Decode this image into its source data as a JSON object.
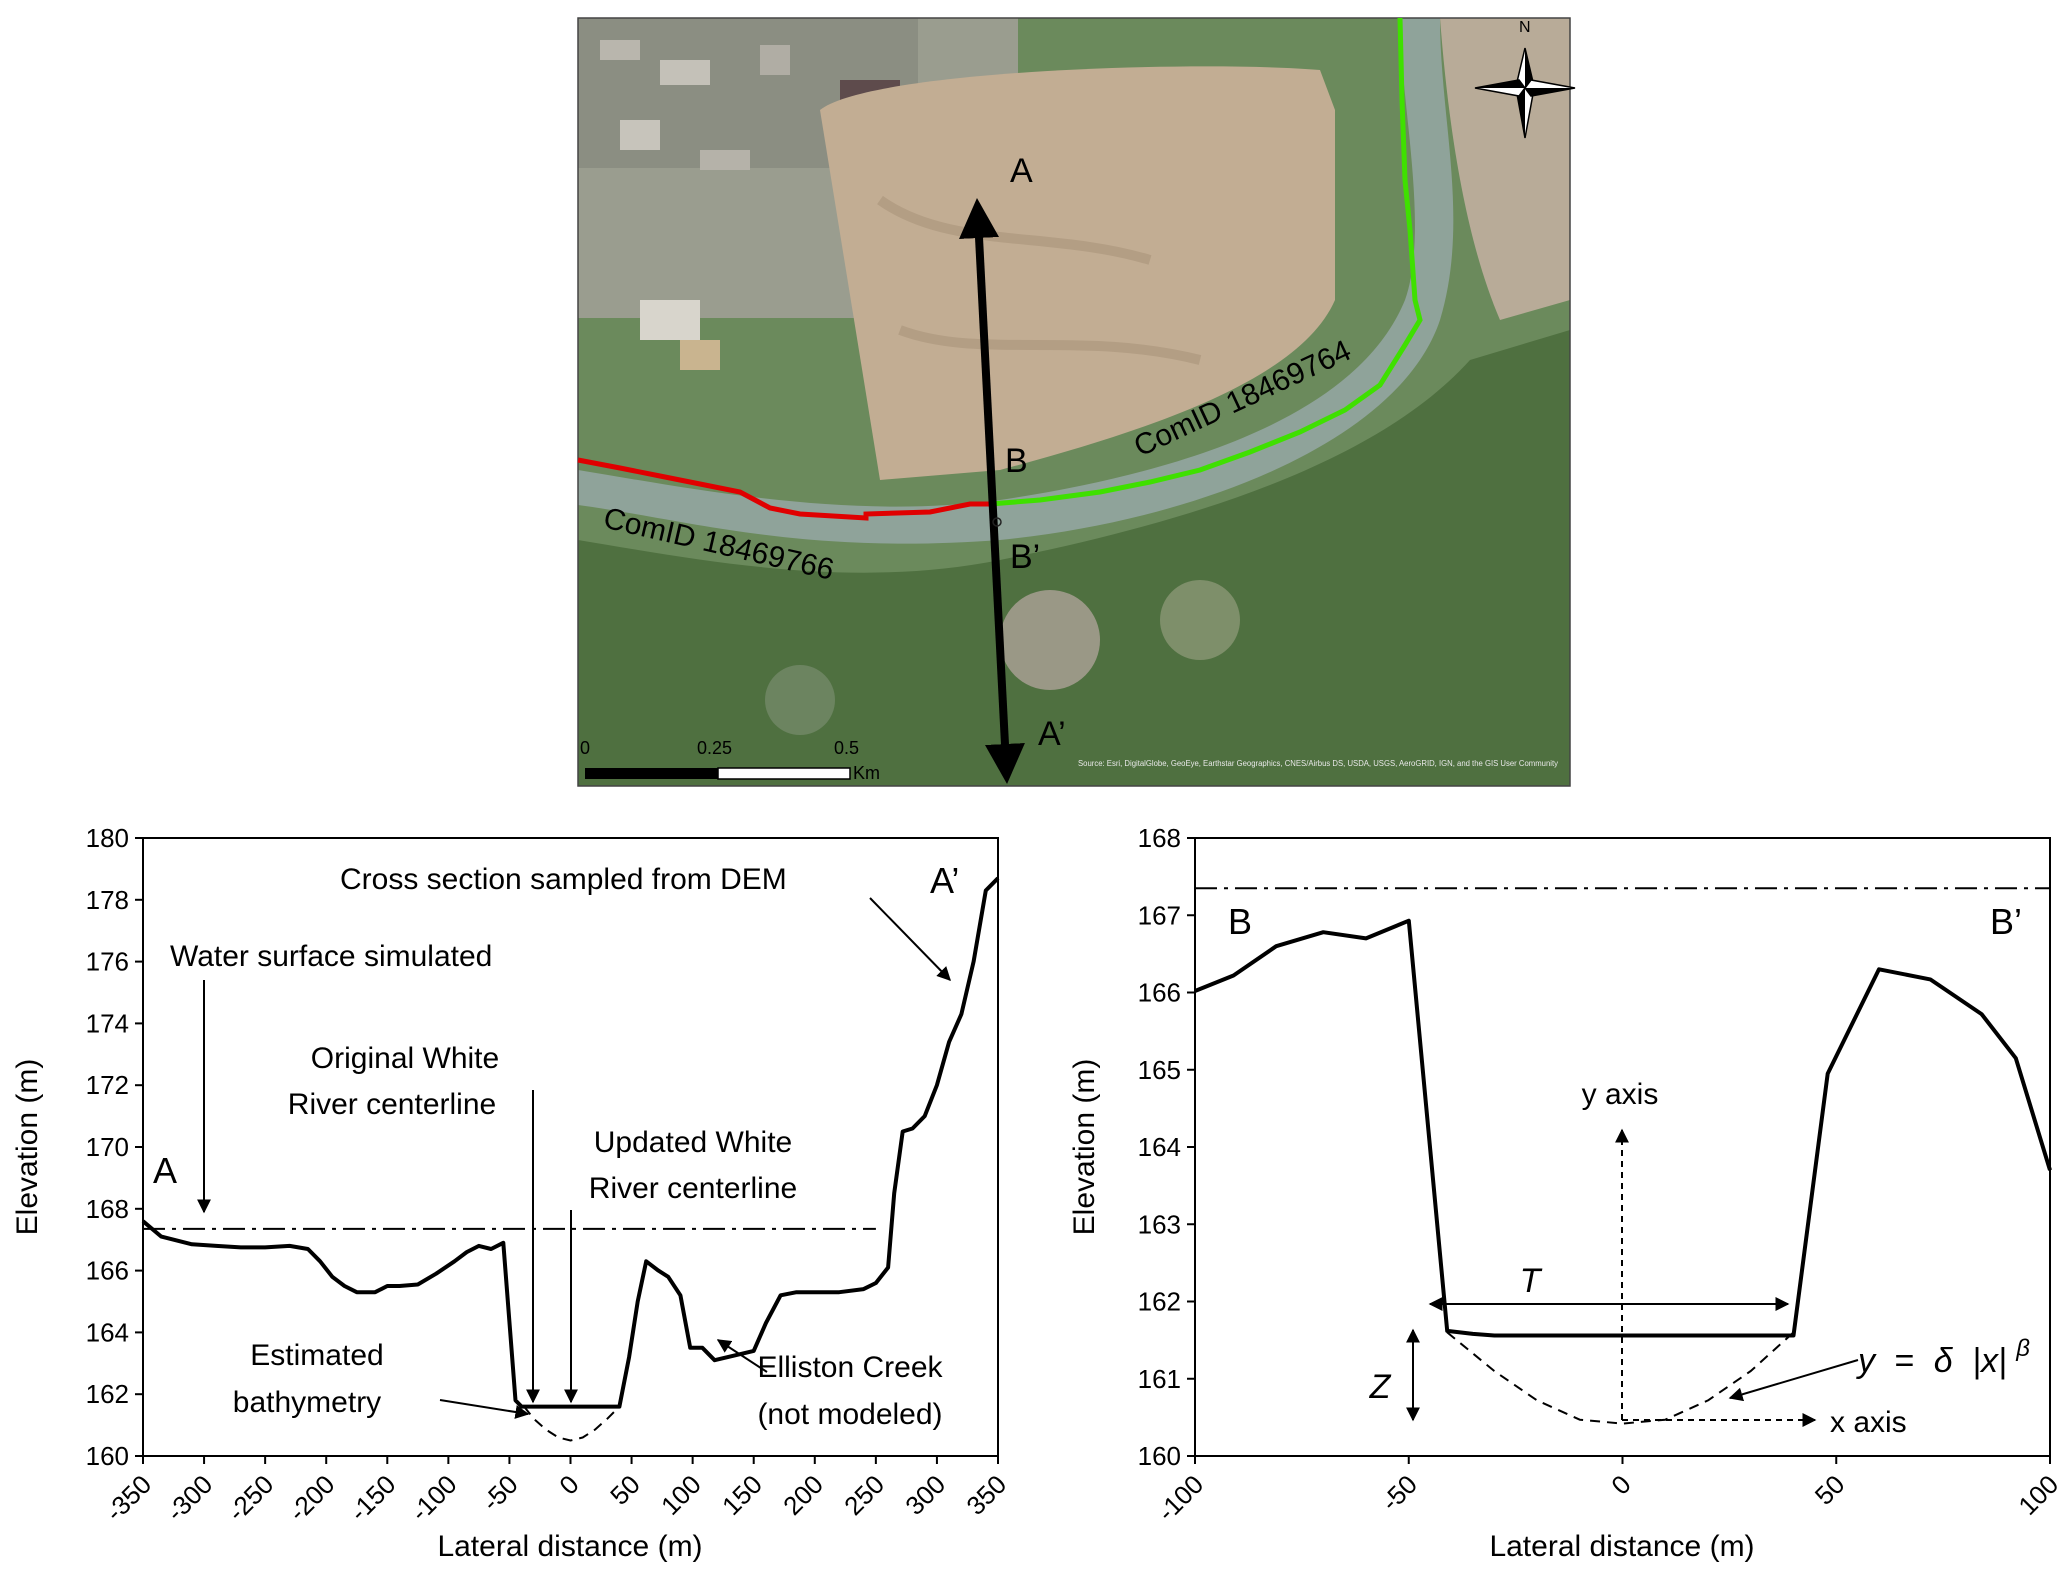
{
  "map": {
    "north_label": "N",
    "point_a": "A",
    "point_a_prime": "A’",
    "point_b": "B",
    "point_b_prime": "B’",
    "reach_downstream": "ComID 18469766",
    "reach_upstream": "ComID 18469764",
    "scale_labels": [
      "0",
      "0.25",
      "0.5"
    ],
    "scale_unit": "Km",
    "attribution": "Source: Esri, DigitalGlobe, GeoEye, Earthstar Geographics, CNES/Airbus DS, USDA, USGS, AeroGRID, IGN, and the GIS User Community",
    "colors": {
      "reach_downstream": "#e00000",
      "reach_upstream": "#3fe000",
      "transect": "#000000"
    }
  },
  "chart_data": [
    {
      "type": "line",
      "id": "A-A'",
      "xlabel": "Lateral distance (m)",
      "ylabel": "Elevation (m)",
      "xlim": [
        -350,
        350
      ],
      "ylim": [
        160,
        180
      ],
      "xticks": [
        -350,
        -300,
        -250,
        -200,
        -150,
        -100,
        -50,
        0,
        50,
        100,
        150,
        200,
        250,
        300,
        350
      ],
      "xtick_labels": [
        "-350",
        "-300",
        "-250",
        "-200",
        "-150",
        "-100",
        "-50",
        "0",
        "50",
        "100",
        "150",
        "200",
        "250",
        "300",
        "350"
      ],
      "yticks": [
        160,
        162,
        164,
        166,
        168,
        170,
        172,
        174,
        176,
        178,
        180
      ],
      "ytick_labels": [
        "160",
        "162",
        "164",
        "166",
        "168",
        "170",
        "172",
        "174",
        "176",
        "178",
        "180"
      ],
      "series": [
        {
          "style": "solid",
          "x": [
            -350,
            -335,
            -310,
            -290,
            -270,
            -250,
            -230,
            -215,
            -205,
            -195,
            -185,
            -175,
            -160,
            -150,
            -140,
            -125,
            -110,
            -95,
            -85,
            -75,
            -65,
            -55,
            -45,
            -40,
            -38,
            -35,
            40,
            48,
            55,
            62,
            72,
            80,
            90,
            98,
            108,
            118,
            150,
            160,
            172,
            185,
            200,
            220,
            240,
            250,
            260,
            265,
            272,
            280,
            290,
            300,
            310,
            320,
            330,
            340,
            350
          ],
          "y": [
            167.6,
            167.1,
            166.85,
            166.8,
            166.75,
            166.75,
            166.8,
            166.7,
            166.3,
            165.8,
            165.5,
            165.3,
            165.3,
            165.5,
            165.5,
            165.55,
            165.9,
            166.3,
            166.6,
            166.8,
            166.7,
            166.9,
            161.8,
            161.6,
            161.6,
            161.6,
            161.6,
            163.2,
            165.0,
            166.3,
            166.0,
            165.8,
            165.2,
            163.5,
            163.5,
            163.1,
            163.4,
            164.3,
            165.2,
            165.3,
            165.3,
            165.3,
            165.4,
            165.6,
            166.1,
            168.5,
            170.5,
            170.6,
            171.0,
            172.0,
            173.4,
            174.3,
            176.0,
            178.3,
            178.7
          ]
        },
        {
          "style": "dashed",
          "x": [
            -38,
            -30,
            -20,
            -10,
            0,
            10,
            20,
            30,
            40
          ],
          "y": [
            161.6,
            161.2,
            160.85,
            160.6,
            160.5,
            160.6,
            160.85,
            161.2,
            161.6
          ]
        },
        {
          "style": "dash-dot",
          "x": [
            -350,
            250
          ],
          "y": [
            167.35,
            167.35
          ]
        }
      ],
      "annotations": [
        "Cross section sampled from DEM",
        "Water surface simulated",
        "Original White River centerline",
        "Updated White River centerline",
        "Estimated bathymetry",
        "Elliston Creek (not modeled)",
        "A",
        "A’"
      ]
    },
    {
      "type": "line",
      "id": "B-B'",
      "xlabel": "Lateral distance (m)",
      "ylabel": "Elevation (m)",
      "xlim": [
        -100,
        100
      ],
      "ylim": [
        160,
        168
      ],
      "xticks": [
        -100,
        -50,
        0,
        50,
        100
      ],
      "xtick_labels": [
        "-100",
        "-50",
        "0",
        "50",
        "100"
      ],
      "yticks": [
        160,
        161,
        162,
        163,
        164,
        165,
        166,
        167,
        168
      ],
      "ytick_labels": [
        "160",
        "161",
        "162",
        "163",
        "164",
        "165",
        "166",
        "167",
        "168"
      ],
      "series": [
        {
          "style": "solid",
          "x": [
            -100,
            -91,
            -81,
            -70,
            -60,
            -50,
            -41,
            -35,
            -30,
            40,
            48,
            60,
            72,
            84,
            92,
            100
          ],
          "y": [
            166.02,
            166.22,
            166.6,
            166.78,
            166.7,
            166.93,
            161.62,
            161.58,
            161.56,
            161.56,
            164.95,
            166.3,
            166.17,
            165.72,
            165.15,
            163.7
          ]
        },
        {
          "style": "dashed",
          "x": [
            -41,
            -30,
            -20,
            -10,
            0,
            10,
            20,
            30,
            40
          ],
          "y": [
            161.6,
            161.1,
            160.72,
            160.47,
            160.42,
            160.47,
            160.72,
            161.1,
            161.6
          ]
        },
        {
          "style": "dash-dot",
          "x": [
            -100,
            100
          ],
          "y": [
            167.35,
            167.35
          ]
        }
      ],
      "annotations": [
        "B",
        "B’",
        "y axis",
        "x axis",
        "T",
        "Z"
      ],
      "equation": {
        "lhs": "y",
        "eq": "=",
        "delta": "δ",
        "abs_x": "|x|",
        "beta": "β"
      }
    }
  ]
}
